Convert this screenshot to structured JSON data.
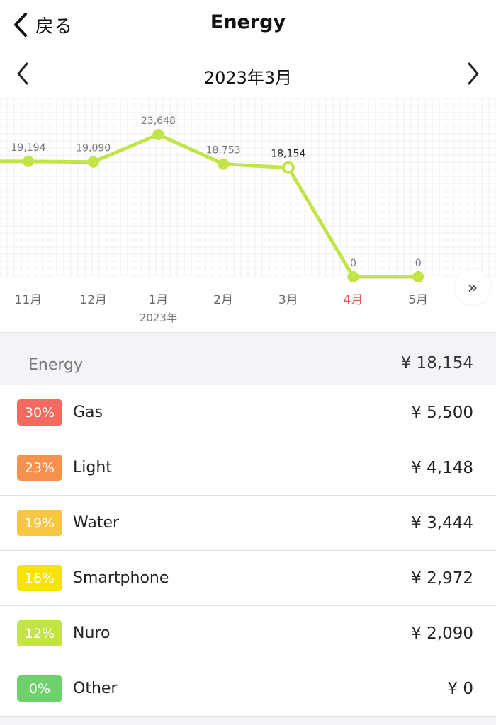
{
  "nav": {
    "back_label": "戻る",
    "title": "Energy"
  },
  "month_nav": {
    "label": "2023年3月"
  },
  "chart_data": {
    "type": "line",
    "categories": [
      "11月",
      "12月",
      "1月",
      "2月",
      "3月",
      "4月",
      "5月"
    ],
    "year_sublabel": "2023年",
    "values": [
      19194,
      19090,
      23648,
      18753,
      18154,
      0,
      0
    ],
    "value_labels": [
      "19,194",
      "19,090",
      "23,648",
      "18,753",
      "18,154",
      "0",
      "0"
    ],
    "selected_index": 4,
    "highlight_index": 5,
    "line_color": "#c2e446",
    "highlight_color": "#e05a4e",
    "grid": true
  },
  "summary": {
    "name": "Energy",
    "amount": "¥ 18,154"
  },
  "categories": [
    {
      "percent": "30%",
      "name": "Gas",
      "amount": "¥ 5,500",
      "color": "#f26a60"
    },
    {
      "percent": "23%",
      "name": "Light",
      "amount": "¥ 4,148",
      "color": "#f6914f"
    },
    {
      "percent": "19%",
      "name": "Water",
      "amount": "¥ 3,444",
      "color": "#f7c645"
    },
    {
      "percent": "16%",
      "name": "Smartphone",
      "amount": "¥ 2,972",
      "color": "#f4e400"
    },
    {
      "percent": "12%",
      "name": "Nuro",
      "amount": "¥ 2,090",
      "color": "#c2e446"
    },
    {
      "percent": "0%",
      "name": "Other",
      "amount": "¥ 0",
      "color": "#6fd16c"
    }
  ]
}
